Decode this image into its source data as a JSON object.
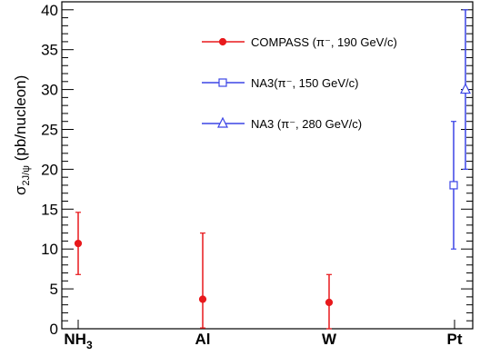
{
  "chart_data": {
    "type": "scatter",
    "title": "",
    "xlabel": "",
    "ylabel": {
      "main": "σ",
      "sub": "2J/ψ",
      "unit": " (pb/nucleon)"
    },
    "ylim": [
      0,
      41
    ],
    "yticks": [
      0,
      5,
      10,
      15,
      20,
      25,
      30,
      35,
      40
    ],
    "grid": false,
    "legend_position": "top-right",
    "categories": [
      {
        "label": "NH",
        "sub": "3"
      },
      {
        "label": "Al",
        "sub": ""
      },
      {
        "label": "W",
        "sub": ""
      },
      {
        "label": "Pt",
        "sub": ""
      }
    ],
    "series": [
      {
        "name": "COMPASS (π⁻, 190 GeV/c)",
        "color": "#e8191c",
        "marker": "filled-circle",
        "points": [
          {
            "category": "NH3",
            "y": 10.7,
            "low": 6.8,
            "high": 14.6
          },
          {
            "category": "Al",
            "y": 3.7,
            "low": 0.1,
            "high": 12.0
          },
          {
            "category": "W",
            "y": 3.3,
            "low": 0.0,
            "high": 6.8
          }
        ]
      },
      {
        "name": "NA3(π⁻, 150 GeV/c)",
        "color": "#3c45e6",
        "marker": "open-square",
        "points": [
          {
            "category": "Pt",
            "y": 18.0,
            "low": 10.0,
            "high": 26.0
          }
        ]
      },
      {
        "name": "NA3 (π⁻, 280 GeV/c)",
        "color": "#3c45e6",
        "marker": "open-triangle",
        "points": [
          {
            "category": "Pt",
            "y": 30.0,
            "low": 20.0,
            "high": 40.0
          }
        ]
      }
    ]
  }
}
